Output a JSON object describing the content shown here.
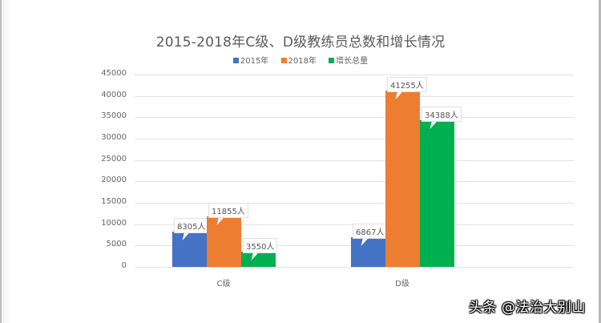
{
  "chart_data": {
    "type": "bar",
    "title": "2015-2018年C级、D级教练员总数和增长情况",
    "categories": [
      "C级",
      "D级"
    ],
    "series": [
      {
        "name": "2015年",
        "color": "#4472C4",
        "values": [
          8305,
          6867
        ],
        "labels": [
          "8305人",
          "6867人"
        ]
      },
      {
        "name": "2018年",
        "color": "#ED7D31",
        "values": [
          11855,
          41255
        ],
        "labels": [
          "11855人",
          "41255人"
        ]
      },
      {
        "name": "增长总量",
        "color": "#00B050",
        "values": [
          3550,
          34388
        ],
        "labels": [
          "3550人",
          "34388人"
        ]
      }
    ],
    "xlabel": "",
    "ylabel": "",
    "ylim": [
      0,
      45000
    ],
    "yticks": [
      "45000",
      "40000",
      "35000",
      "30000",
      "25000",
      "20000",
      "15000",
      "10000",
      "5000",
      "0"
    ],
    "grid": true,
    "legend_position": "top"
  },
  "watermark": "头条 @法治大别山"
}
